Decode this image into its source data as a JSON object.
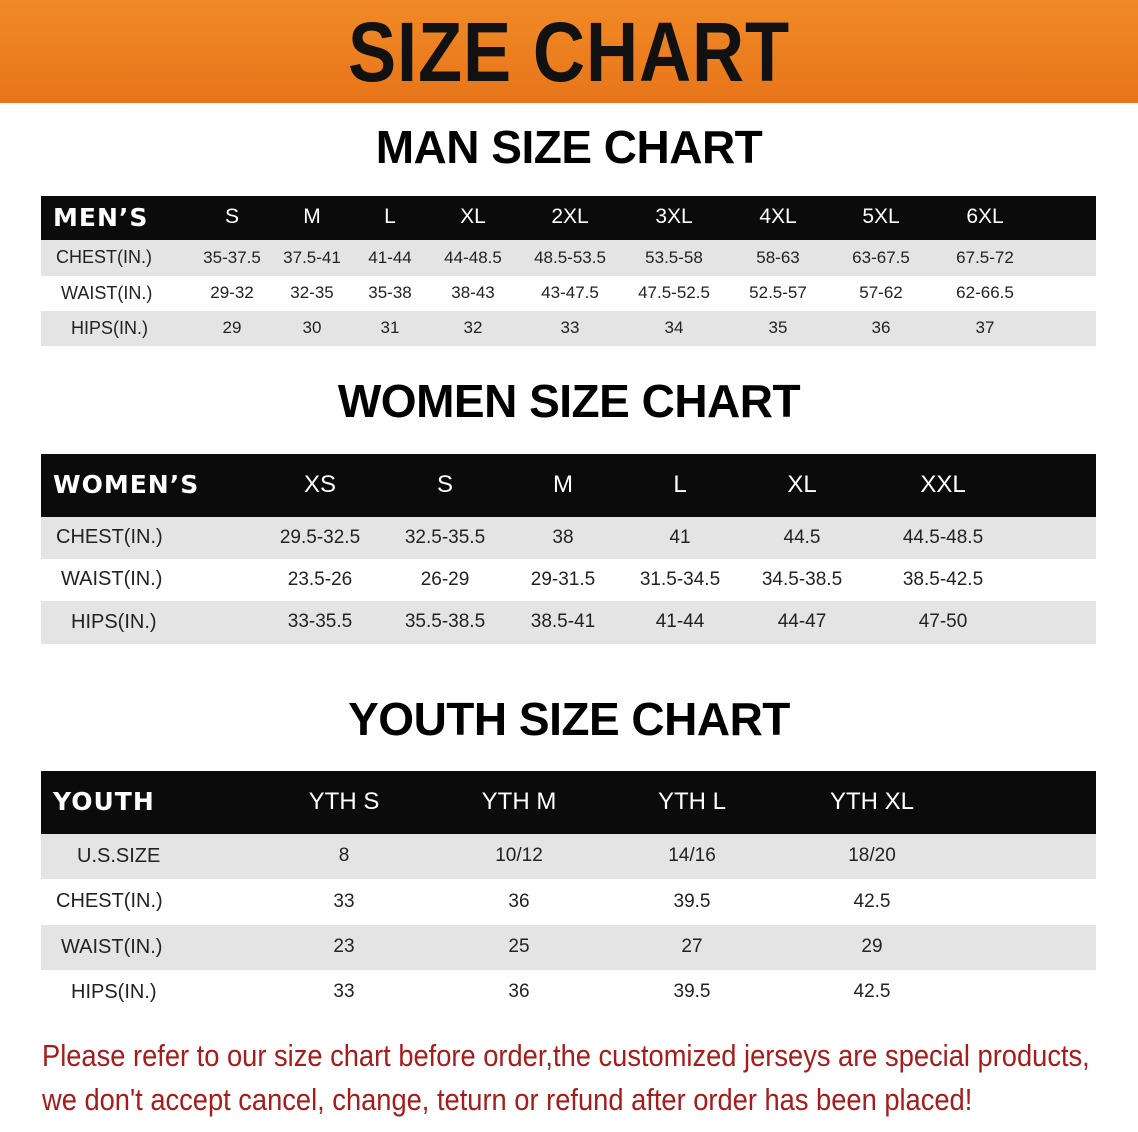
{
  "banner": {
    "title": "SIZE CHART",
    "color": "#ee8020"
  },
  "men": {
    "title": "MAN SIZE CHART",
    "header_label": "MEN’S",
    "sizes": [
      "S",
      "M",
      "L",
      "XL",
      "2XL",
      "3XL",
      "4XL",
      "5XL",
      "6XL"
    ],
    "rows": [
      {
        "label": "CHEST(IN.)",
        "values": [
          "35-37.5",
          "37.5-41",
          "41-44",
          "44-48.5",
          "48.5-53.5",
          "53.5-58",
          "58-63",
          "63-67.5",
          "67.5-72"
        ]
      },
      {
        "label": "WAIST(IN.)",
        "values": [
          "29-32",
          "32-35",
          "35-38",
          "38-43",
          "43-47.5",
          "47.5-52.5",
          "52.5-57",
          "57-62",
          "62-66.5"
        ]
      },
      {
        "label": "HIPS(IN.)",
        "values": [
          "29",
          "30",
          "31",
          "32",
          "33",
          "34",
          "35",
          "36",
          "37"
        ]
      }
    ]
  },
  "women": {
    "title": "WOMEN SIZE CHART",
    "header_label": "WOMEN’S",
    "sizes": [
      "XS",
      "S",
      "M",
      "L",
      "XL",
      "XXL"
    ],
    "rows": [
      {
        "label": "CHEST(IN.)",
        "values": [
          "29.5-32.5",
          "32.5-35.5",
          "38",
          "41",
          "44.5",
          "44.5-48.5"
        ]
      },
      {
        "label": "WAIST(IN.)",
        "values": [
          "23.5-26",
          "26-29",
          "29-31.5",
          "31.5-34.5",
          "34.5-38.5",
          "38.5-42.5"
        ]
      },
      {
        "label": "HIPS(IN.)",
        "values": [
          "33-35.5",
          "35.5-38.5",
          "38.5-41",
          "41-44",
          "44-47",
          "47-50"
        ]
      }
    ]
  },
  "youth": {
    "title": "YOUTH SIZE CHART",
    "header_label": "YOUTH",
    "sizes": [
      "YTH S",
      "YTH M",
      "YTH L",
      "YTH XL"
    ],
    "rows": [
      {
        "label": "U.S.SIZE",
        "values": [
          "8",
          "10/12",
          "14/16",
          "18/20"
        ]
      },
      {
        "label": "CHEST(IN.)",
        "values": [
          "33",
          "36",
          "39.5",
          "42.5"
        ]
      },
      {
        "label": "WAIST(IN.)",
        "values": [
          "23",
          "25",
          "27",
          "29"
        ]
      },
      {
        "label": "HIPS(IN.)",
        "values": [
          "33",
          "36",
          "39.5",
          "42.5"
        ]
      }
    ]
  },
  "note": {
    "line1": "Please refer to our size chart before order,the customized jerseys are special products,",
    "line2": "we don't accept cancel, change, teturn or refund after order has been placed!",
    "color": "#a51c1c"
  }
}
